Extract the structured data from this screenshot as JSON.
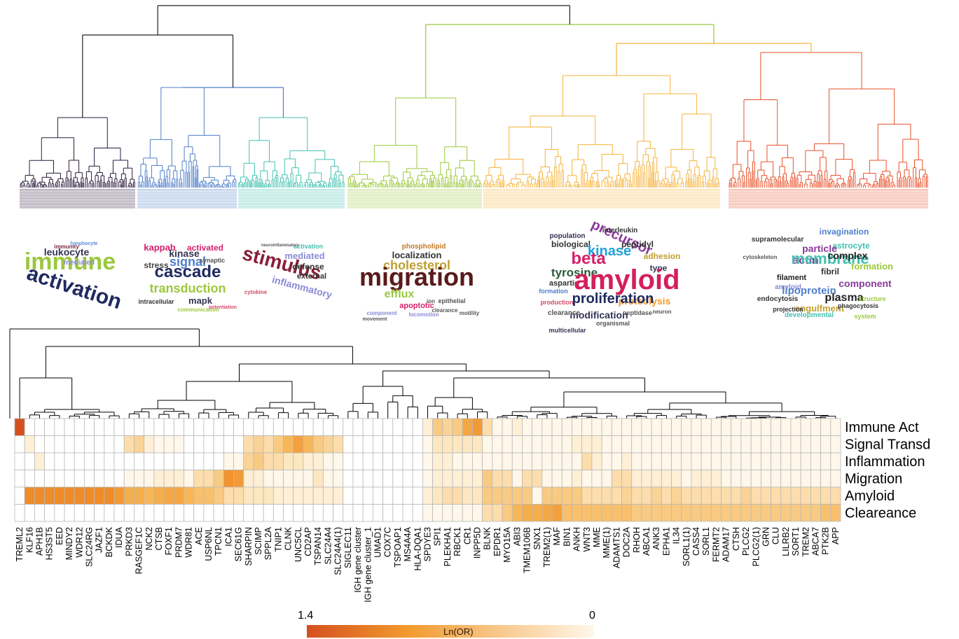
{
  "colors": {
    "cluster_1": "#2a1a3c",
    "cluster_2": "#4f7fca",
    "cluster_3": "#44c1b0",
    "cluster_4": "#9bc83c",
    "cluster_5": "#f6b33a",
    "cluster_6": "#e8512a",
    "root": "#222222",
    "heat_max": "#d4501e",
    "heat_mid": "#f29a2e",
    "heat_min": "#fff7ea"
  },
  "word_clouds": [
    {
      "words": [
        {
          "text": "immune",
          "color": "#9bc83c",
          "size": 34
        },
        {
          "text": "activation",
          "color": "#1f2a60",
          "size": 30,
          "rotate": 18
        },
        {
          "text": "leukocyte",
          "color": "#333355",
          "size": 14
        },
        {
          "text": "mediated",
          "color": "#8a8ad8",
          "size": 10
        },
        {
          "text": "immunity",
          "color": "#7a2a3a",
          "size": 8
        },
        {
          "text": "lymphocyte",
          "color": "#5a8ad8",
          "size": 7
        }
      ]
    },
    {
      "words": [
        {
          "text": "kappab",
          "color": "#d4206a",
          "size": 13
        },
        {
          "text": "activated",
          "color": "#d4206a",
          "size": 12
        },
        {
          "text": "kinase",
          "color": "#333355",
          "size": 14
        },
        {
          "text": "signal",
          "color": "#4f7fca",
          "size": 18
        },
        {
          "text": "synaptic",
          "color": "#555",
          "size": 9
        },
        {
          "text": "stress",
          "color": "#444",
          "size": 12
        },
        {
          "text": "cascade",
          "color": "#1f2a60",
          "size": 24
        },
        {
          "text": "transduction",
          "color": "#9bc83c",
          "size": 18
        },
        {
          "text": "intracellular",
          "color": "#333",
          "size": 9
        },
        {
          "text": "mapk",
          "color": "#333355",
          "size": 13
        },
        {
          "text": "communication",
          "color": "#9bc83c",
          "size": 8
        },
        {
          "text": "potentiation",
          "color": "#d44a6a",
          "size": 7
        }
      ]
    },
    {
      "words": [
        {
          "text": "stimulus",
          "color": "#8a1f3a",
          "size": 28,
          "rotate": 15
        },
        {
          "text": "mediated",
          "color": "#8a8ad8",
          "size": 13
        },
        {
          "text": "defense",
          "color": "#333",
          "size": 12
        },
        {
          "text": "external",
          "color": "#333",
          "size": 11
        },
        {
          "text": "inflammatory",
          "color": "#8a8ad8",
          "size": 14,
          "rotate": 15
        },
        {
          "text": "activation",
          "color": "#44c1b0",
          "size": 9
        },
        {
          "text": "cytokine",
          "color": "#d44a6a",
          "size": 8
        },
        {
          "text": "neuroinflammatory",
          "color": "#555",
          "size": 6
        }
      ]
    },
    {
      "words": [
        {
          "text": "phospholipid",
          "color": "#c07a2a",
          "size": 10
        },
        {
          "text": "localization",
          "color": "#333",
          "size": 13
        },
        {
          "text": "cholesterol",
          "color": "#c0a030",
          "size": 18
        },
        {
          "text": "migration",
          "color": "#5a1a1a",
          "size": 36
        },
        {
          "text": "efflux",
          "color": "#9bc83c",
          "size": 16
        },
        {
          "text": "apoptotic",
          "color": "#d4206a",
          "size": 11
        },
        {
          "text": "epithelial",
          "color": "#555",
          "size": 9
        },
        {
          "text": "component",
          "color": "#8a8ad8",
          "size": 8
        },
        {
          "text": "locomotion",
          "color": "#8a8ad8",
          "size": 8
        },
        {
          "text": "clearance",
          "color": "#555",
          "size": 8
        },
        {
          "text": "motility",
          "color": "#555",
          "size": 8
        },
        {
          "text": "movement",
          "color": "#555",
          "size": 7
        },
        {
          "text": "ion",
          "color": "#555",
          "size": 8
        }
      ]
    },
    {
      "words": [
        {
          "text": "precursor",
          "color": "#8a3a9a",
          "size": 20,
          "rotate": 25
        },
        {
          "text": "population",
          "color": "#333355",
          "size": 10
        },
        {
          "text": "interleukin",
          "color": "#333",
          "size": 10
        },
        {
          "text": "biological",
          "color": "#333",
          "size": 12
        },
        {
          "text": "peptidyl",
          "color": "#333",
          "size": 12
        },
        {
          "text": "kinase",
          "color": "#1fa0d8",
          "size": 20
        },
        {
          "text": "beta",
          "color": "#d4206a",
          "size": 24
        },
        {
          "text": "adhesion",
          "color": "#c0a030",
          "size": 12
        },
        {
          "text": "tyrosine",
          "color": "#2a5a3a",
          "size": 17
        },
        {
          "text": "type",
          "color": "#333355",
          "size": 12
        },
        {
          "text": "aspartic",
          "color": "#333",
          "size": 11
        },
        {
          "text": "amyloid",
          "color": "#d4205a",
          "size": 40
        },
        {
          "text": "proteolysis",
          "color": "#f29a2e",
          "size": 14
        },
        {
          "text": "proliferation",
          "color": "#1f2a60",
          "size": 20
        },
        {
          "text": "modification",
          "color": "#333355",
          "size": 14
        },
        {
          "text": "clearance",
          "color": "#555",
          "size": 10
        },
        {
          "text": "peptidase",
          "color": "#555",
          "size": 9
        },
        {
          "text": "organismal",
          "color": "#555",
          "size": 9
        },
        {
          "text": "multicellular",
          "color": "#333355",
          "size": 9
        },
        {
          "text": "production",
          "color": "#d44a6a",
          "size": 9
        },
        {
          "text": "formation",
          "color": "#4f7fca",
          "size": 9
        },
        {
          "text": "neuron",
          "color": "#555",
          "size": 8
        }
      ]
    },
    {
      "words": [
        {
          "text": "invagination",
          "color": "#4f7fca",
          "size": 12
        },
        {
          "text": "supramolecular",
          "color": "#333",
          "size": 10
        },
        {
          "text": "astrocyte",
          "color": "#44c1b0",
          "size": 12
        },
        {
          "text": "particle",
          "color": "#8a3a9a",
          "size": 14
        },
        {
          "text": "actin",
          "color": "#8a3a9a",
          "size": 16
        },
        {
          "text": "membrane",
          "color": "#44c1b0",
          "size": 22
        },
        {
          "text": "complex",
          "color": "#222",
          "size": 14
        },
        {
          "text": "fibril",
          "color": "#333",
          "size": 12
        },
        {
          "text": "formation",
          "color": "#9bc83c",
          "size": 13
        },
        {
          "text": "filament",
          "color": "#222",
          "size": 11
        },
        {
          "text": "amyloid",
          "color": "#8a8ad8",
          "size": 10
        },
        {
          "text": "lipoprotein",
          "color": "#4f7fca",
          "size": 15
        },
        {
          "text": "component",
          "color": "#8a3a9a",
          "size": 14
        },
        {
          "text": "plasma",
          "color": "#222",
          "size": 16
        },
        {
          "text": "endocytosis",
          "color": "#333",
          "size": 10
        },
        {
          "text": "engulfment",
          "color": "#c0a030",
          "size": 13
        },
        {
          "text": "developmental",
          "color": "#44c1b0",
          "size": 10
        },
        {
          "text": "phagocytosis",
          "color": "#333",
          "size": 9
        },
        {
          "text": "projection",
          "color": "#333",
          "size": 9
        },
        {
          "text": "system",
          "color": "#9bc83c",
          "size": 9
        },
        {
          "text": "cytoskeleton",
          "color": "#555",
          "size": 8
        },
        {
          "text": "structure",
          "color": "#9bc83c",
          "size": 9
        }
      ]
    }
  ],
  "chart_data": {
    "type": "heatmap",
    "colorbar": {
      "label": "Ln(OR)",
      "min_label": "1.4",
      "max_label": "0",
      "range": [
        1.4,
        0
      ]
    },
    "rows": [
      "Immune Act",
      "Signal Transd",
      "Inflammation",
      "Migration",
      "Amyloid",
      "Cleareance"
    ],
    "columns": [
      "TREML2",
      "KLF16",
      "APH1B",
      "HS3ST5",
      "EED",
      "MINDY2",
      "WDR12",
      "SLC24RG",
      "JAZF1",
      "BCKDK",
      "IDUA",
      "PRKD3",
      "RASGEF1C",
      "NCK2",
      "CTSB",
      "FOXF1",
      "PRDM7",
      "WDR81",
      "ACE",
      "USP6NL",
      "TPCN1",
      "ICA1",
      "SEC61G",
      "SHARPIN",
      "SCIMP",
      "SPPL2A",
      "TNIP1",
      "CLNK",
      "UNC5CL",
      "CD2AP",
      "TSPAN14",
      "SLC24A4",
      "SLC24A4(1)",
      "SIGLEC11",
      "IGH gene cluster",
      "IGH gene cluster_1",
      "UMAD1",
      "COX7C",
      "TSPOAP1",
      "MS4A4A",
      "HLA-DQA1",
      "SPDYE3",
      "SPI1",
      "PLEKHA1",
      "RBCK1",
      "CR1",
      "INPP5D",
      "BLNK",
      "EPDR1",
      "MYO15A",
      "ABI3",
      "TMEM106B",
      "SNX1",
      "TREM2(1)",
      "MAF",
      "BIN1",
      "ANKH",
      "WNT3",
      "MME",
      "MME(1)",
      "ADAMTS1",
      "DOC2A",
      "RHOH",
      "ABCA1",
      "ANK3",
      "EPHA1",
      "IL34",
      "SORL1(1)",
      "CASS4",
      "SORL1",
      "FERMT2",
      "ADAM17",
      "CTSH",
      "PLCG2",
      "PLCG2(1)",
      "GRN",
      "CLU",
      "LILRB2",
      "SORT1",
      "TREM2",
      "ABCA7",
      "PTK2B",
      "APP"
    ],
    "values": [
      [
        1.4,
        0,
        0,
        0,
        0,
        0,
        0,
        0,
        0,
        0,
        0,
        0,
        0,
        0,
        0,
        0,
        0,
        0,
        0,
        0,
        0,
        0,
        0,
        0,
        0,
        0,
        0,
        0,
        0,
        0,
        0,
        0,
        0,
        0,
        0,
        0,
        0,
        0,
        0,
        0,
        0,
        0.1,
        0.3,
        0.25,
        0.3,
        0.5,
        0.6,
        0.2,
        0.05,
        0.05,
        0.1,
        0.05,
        0.05,
        0.05,
        0.05,
        0.05,
        0.05,
        0.05,
        0.05,
        0.05,
        0.05,
        0.05,
        0.05,
        0.05,
        0.05,
        0.05,
        0.05,
        0.05,
        0.05,
        0.05,
        0.05,
        0.05,
        0.05,
        0.05,
        0.05,
        0.05,
        0.05,
        0.05,
        0.05,
        0.05,
        0.05,
        0.05,
        0.05
      ],
      [
        0,
        0.1,
        0,
        0,
        0,
        0,
        0,
        0,
        0,
        0,
        0,
        0.2,
        0.25,
        0.1,
        0.05,
        0.05,
        0.05,
        0,
        0,
        0,
        0,
        0,
        0,
        0.2,
        0.25,
        0.2,
        0.3,
        0.4,
        0.55,
        0.4,
        0.3,
        0.25,
        0.2,
        0,
        0,
        0,
        0,
        0,
        0,
        0,
        0,
        0.05,
        0.15,
        0.15,
        0.15,
        0.15,
        0.15,
        0.05,
        0.05,
        0.05,
        0.05,
        0.05,
        0.05,
        0.05,
        0.05,
        0.05,
        0.1,
        0.1,
        0.1,
        0.05,
        0.05,
        0.05,
        0.05,
        0.05,
        0.05,
        0.05,
        0.05,
        0.05,
        0.05,
        0.05,
        0.05,
        0.05,
        0.05,
        0.05,
        0.05,
        0.05,
        0.05,
        0.05,
        0.05,
        0.05,
        0.05,
        0.05,
        0.05
      ],
      [
        0,
        0,
        0.1,
        0,
        0,
        0,
        0,
        0,
        0,
        0,
        0,
        0,
        0,
        0,
        0,
        0,
        0,
        0,
        0,
        0,
        0,
        0.05,
        0.05,
        0.25,
        0.3,
        0.2,
        0.2,
        0.15,
        0.15,
        0.1,
        0.1,
        0.05,
        0.05,
        0,
        0,
        0,
        0,
        0,
        0,
        0,
        0,
        0.05,
        0.1,
        0.1,
        0.05,
        0.05,
        0.05,
        0.05,
        0.05,
        0.05,
        0.05,
        0.05,
        0.05,
        0.05,
        0.05,
        0.05,
        0.05,
        0.2,
        0.1,
        0.05,
        0.05,
        0.1,
        0.05,
        0.05,
        0.05,
        0.05,
        0.05,
        0.05,
        0.05,
        0.05,
        0.05,
        0.05,
        0.05,
        0.05,
        0.05,
        0.05,
        0.05,
        0.05,
        0.05,
        0.05,
        0.05,
        0.05,
        0.05
      ],
      [
        0,
        0,
        0,
        0,
        0,
        0,
        0,
        0,
        0,
        0,
        0,
        0.05,
        0.05,
        0.05,
        0.1,
        0.1,
        0.1,
        0.05,
        0.2,
        0.2,
        0.3,
        0.65,
        0.6,
        0.1,
        0.1,
        0.05,
        0.05,
        0.05,
        0.05,
        0.05,
        0.15,
        0.05,
        0.05,
        0,
        0,
        0,
        0,
        0,
        0,
        0,
        0,
        0.05,
        0.1,
        0.1,
        0.1,
        0.1,
        0.1,
        0.3,
        0.2,
        0.2,
        0.05,
        0.2,
        0.2,
        0.05,
        0.05,
        0.05,
        0.1,
        0.05,
        0.05,
        0.05,
        0.2,
        0.2,
        0.1,
        0.1,
        0.1,
        0.1,
        0.1,
        0.05,
        0.1,
        0.1,
        0.1,
        0.05,
        0.05,
        0.05,
        0.05,
        0.05,
        0.05,
        0.05,
        0.05,
        0.05,
        0.05,
        0.05,
        0.05
      ],
      [
        0,
        0.7,
        0.7,
        0.7,
        0.7,
        0.7,
        0.7,
        0.7,
        0.7,
        0.7,
        0.6,
        0.45,
        0.45,
        0.4,
        0.45,
        0.5,
        0.5,
        0.4,
        0.35,
        0.35,
        0.3,
        0.2,
        0.2,
        0.15,
        0.15,
        0.15,
        0.1,
        0.1,
        0.1,
        0.1,
        0.1,
        0.1,
        0.1,
        0,
        0,
        0,
        0,
        0,
        0,
        0,
        0,
        0.1,
        0.15,
        0.2,
        0.2,
        0.15,
        0.15,
        0.3,
        0.3,
        0.3,
        0.3,
        0.3,
        0.05,
        0.3,
        0.3,
        0.3,
        0.3,
        0.2,
        0.2,
        0.2,
        0.2,
        0.25,
        0.2,
        0.2,
        0.25,
        0.2,
        0.25,
        0.2,
        0.2,
        0.2,
        0.2,
        0.2,
        0.2,
        0.25,
        0.2,
        0.2,
        0.2,
        0.2,
        0.2,
        0.2,
        0.2,
        0.2,
        0.2
      ],
      [
        0,
        0,
        0,
        0,
        0,
        0,
        0,
        0,
        0,
        0,
        0,
        0,
        0,
        0,
        0,
        0,
        0,
        0,
        0,
        0,
        0,
        0,
        0,
        0,
        0,
        0,
        0,
        0,
        0,
        0,
        0,
        0,
        0,
        0,
        0,
        0,
        0,
        0,
        0,
        0,
        0,
        0.05,
        0.05,
        0.05,
        0.05,
        0.05,
        0.05,
        0.2,
        0.2,
        0.3,
        0.4,
        0.45,
        0.45,
        0.5,
        0.55,
        0.35,
        0.35,
        0.35,
        0.35,
        0.35,
        0.35,
        0.35,
        0.3,
        0.3,
        0.3,
        0.3,
        0.3,
        0.3,
        0.3,
        0.3,
        0.3,
        0.3,
        0.3,
        0.3,
        0.3,
        0.3,
        0.3,
        0.3,
        0.3,
        0.3,
        0.3,
        0.35,
        0.35
      ]
    ]
  }
}
